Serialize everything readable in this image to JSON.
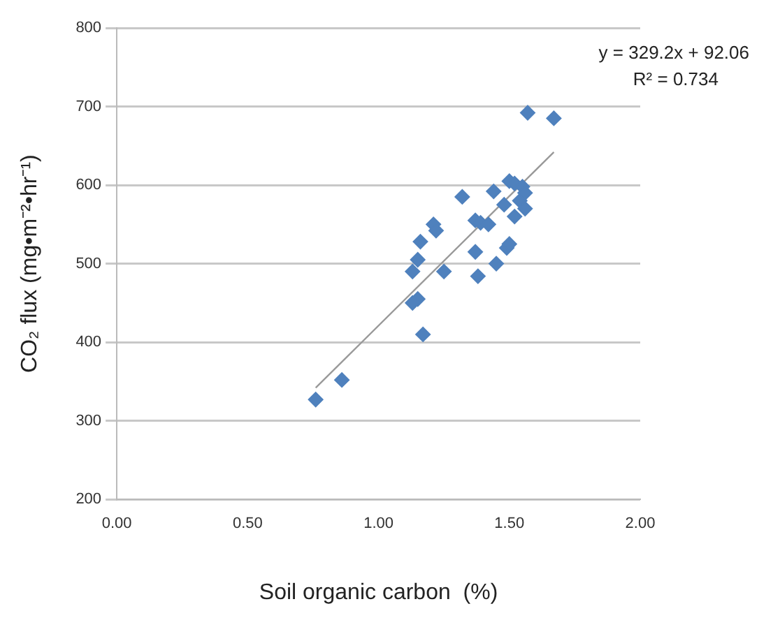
{
  "chart_data": {
    "type": "scatter",
    "xlabel": "Soil organic carbon  (%)",
    "ylabel": "CO₂ flux (mg•m⁻²•hr⁻¹)",
    "series": [
      {
        "color": "#4f81bd",
        "marker": "diamond",
        "x": [
          0.76,
          0.86,
          1.17,
          1.15,
          1.13,
          1.13,
          1.15,
          1.16,
          1.21,
          1.22,
          1.25,
          1.32,
          1.37,
          1.39,
          1.37,
          1.38,
          1.42,
          1.44,
          1.45,
          1.49,
          1.5,
          1.48,
          1.5,
          1.52,
          1.55,
          1.54,
          1.52,
          1.56,
          1.56,
          1.57,
          1.67
        ],
        "values": [
          327,
          352,
          410,
          455,
          450,
          490,
          505,
          528,
          550,
          542,
          490,
          585,
          555,
          552,
          515,
          484,
          550,
          592,
          500,
          520,
          525,
          575,
          605,
          602,
          598,
          580,
          560,
          570,
          590,
          692,
          685
        ]
      },
      {
        "type": "line",
        "color": "#999999",
        "marker": "none",
        "x": [
          0.76,
          1.67
        ],
        "values": [
          342,
          642
        ]
      }
    ],
    "annotations": [
      "y = 329.2x + 92.06",
      "R² = 0.734"
    ],
    "xlim": [
      0,
      2
    ],
    "xticks": [
      {
        "value": 0,
        "label": "0.00"
      },
      {
        "value": 0.5,
        "label": "0.50"
      },
      {
        "value": 1,
        "label": "1.00"
      },
      {
        "value": 1.5,
        "label": "1.50"
      },
      {
        "value": 2,
        "label": "2.00"
      }
    ],
    "ylim": [
      200,
      800
    ],
    "yticks": [
      200,
      300,
      400,
      500,
      600,
      700,
      800
    ],
    "grid": "y",
    "legend": false
  }
}
